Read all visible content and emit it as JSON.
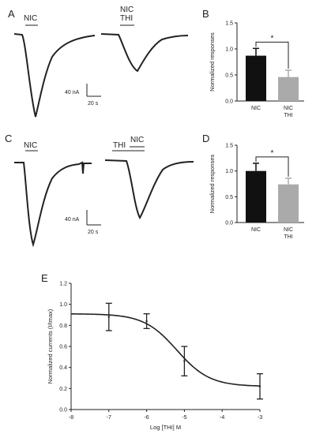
{
  "panels": {
    "A": {
      "letter": "A",
      "trace1_label": "NIC",
      "trace2_label_top": "NIC",
      "trace2_label_bottom": "THI",
      "scale_current": "40 nA",
      "scale_time": "20 s"
    },
    "C": {
      "letter": "C",
      "trace1_label": "NIC",
      "trace2_label_thi": "THI",
      "trace2_label_nic": "NIC",
      "scale_current": "40 nA",
      "scale_time": "20 s"
    }
  },
  "chart_data": [
    {
      "panel": "B",
      "type": "bar",
      "categories": [
        "NIC",
        "NIC\nTHI"
      ],
      "category_lines": [
        [
          "NIC"
        ],
        [
          "NIC",
          "THI"
        ]
      ],
      "values": [
        0.87,
        0.46
      ],
      "errors": [
        0.14,
        0.13
      ],
      "colors": [
        "#111111",
        "#aaaaaa"
      ],
      "ylabel": "Normalized responses",
      "ylim": [
        0,
        1.5
      ],
      "yticks": [
        0.0,
        0.5,
        1.0,
        1.5
      ],
      "ytick_labels": [
        "0.0",
        "0.5",
        "1.0",
        "1.5"
      ],
      "significance": "*"
    },
    {
      "panel": "D",
      "type": "bar",
      "categories": [
        "NIC",
        "NIC\nTHI"
      ],
      "category_lines": [
        [
          "NIC"
        ],
        [
          "NIC",
          "THI"
        ]
      ],
      "values": [
        1.0,
        0.74
      ],
      "errors": [
        0.15,
        0.12
      ],
      "colors": [
        "#111111",
        "#aaaaaa"
      ],
      "ylabel": "Normalized responses",
      "ylim": [
        0,
        1.5
      ],
      "yticks": [
        0.0,
        0.5,
        1.0,
        1.5
      ],
      "ytick_labels": [
        "0.0",
        "0.5",
        "1.0",
        "1.5"
      ],
      "significance": "*"
    },
    {
      "panel": "E",
      "type": "scatter",
      "x": [
        -7,
        -6,
        -5,
        -3
      ],
      "y": [
        0.88,
        0.84,
        0.46,
        0.22
      ],
      "yerr": [
        0.13,
        0.07,
        0.14,
        0.12
      ],
      "fit": {
        "top": 0.91,
        "bottom": 0.22,
        "log_ic50": -5.2,
        "hill_slope": 1.0
      },
      "xlabel": "Log [THI] M",
      "ylabel": "Normalized currents (I/Imax)",
      "xlim": [
        -8,
        -3
      ],
      "ylim": [
        0,
        1.2
      ],
      "xticks": [
        -8,
        -7,
        -6,
        -5,
        -4,
        -3
      ],
      "xtick_labels": [
        "-8",
        "-7",
        "-6",
        "-5",
        "-4",
        "-3"
      ],
      "yticks": [
        0,
        0.2,
        0.4,
        0.6,
        0.8,
        1.0,
        1.2
      ],
      "ytick_labels": [
        "0.0",
        "0.2",
        "0.4",
        "0.6",
        "0.8",
        "1.0",
        "1.2"
      ]
    }
  ]
}
